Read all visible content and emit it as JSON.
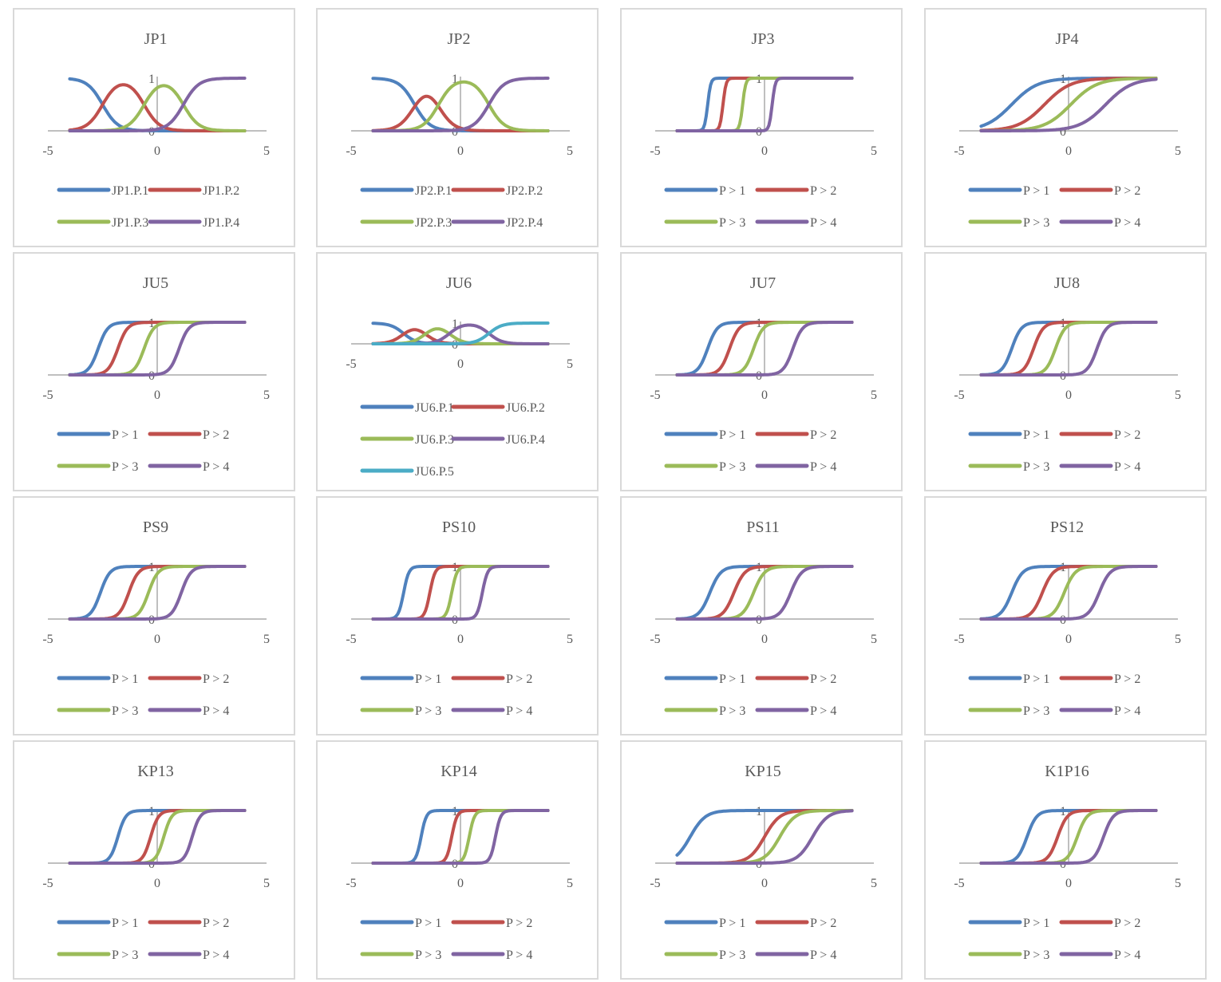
{
  "colors": {
    "c1": "#4f81bd",
    "c2": "#c0504d",
    "c3": "#9bbb59",
    "c4": "#8064a2",
    "c5": "#4bacc6",
    "axis": "#bfbfbf",
    "text": "#595959",
    "border": "#d9d9d9"
  },
  "chart_data": [
    {
      "title": "JP1",
      "type": "line",
      "x_range": [
        -4,
        4
      ],
      "xlim": [
        -5,
        5
      ],
      "ylim": [
        0,
        1
      ],
      "xticks": [
        "-5",
        "0",
        "5"
      ],
      "yticks": [
        "0",
        "1"
      ],
      "legend_position": "bottom",
      "series": [
        {
          "name": "JP1.P.1",
          "kind": "prob1",
          "params": [
            -2.5,
            0.35
          ]
        },
        {
          "name": "JP1.P.2",
          "kind": "mid",
          "params": [
            -2.5,
            0.35,
            -0.6,
            0.35
          ]
        },
        {
          "name": "JP1.P.3",
          "kind": "mid",
          "params": [
            -0.6,
            0.35,
            1.2,
            0.35
          ]
        },
        {
          "name": "JP1.P.4",
          "kind": "last",
          "params": [
            1.2,
            0.35
          ]
        }
      ]
    },
    {
      "title": "JP2",
      "type": "line",
      "x_range": [
        -4,
        4
      ],
      "xlim": [
        -5,
        5
      ],
      "ylim": [
        0,
        1
      ],
      "xticks": [
        "-5",
        "0",
        "5"
      ],
      "yticks": [
        "0",
        "1"
      ],
      "legend_position": "bottom",
      "series": [
        {
          "name": "JP2.P.1",
          "kind": "prob1",
          "params": [
            -2.1,
            0.35
          ]
        },
        {
          "name": "JP2.P.2",
          "kind": "mid",
          "params": [
            -2.1,
            0.35,
            -1.0,
            0.35
          ]
        },
        {
          "name": "JP2.P.3",
          "kind": "mid",
          "params": [
            -1.0,
            0.35,
            1.3,
            0.35
          ]
        },
        {
          "name": "JP2.P.4",
          "kind": "last",
          "params": [
            1.3,
            0.35
          ]
        }
      ]
    },
    {
      "title": "JP3",
      "type": "line",
      "x_range": [
        -4,
        4
      ],
      "xlim": [
        -5,
        5
      ],
      "ylim": [
        0,
        1
      ],
      "xticks": [
        "-5",
        "0",
        "5"
      ],
      "yticks": [
        "0",
        "1"
      ],
      "legend_position": "bottom",
      "series": [
        {
          "name": "P > 1",
          "kind": "cum",
          "params": [
            -2.6,
            0.07
          ]
        },
        {
          "name": "P > 2",
          "kind": "cum",
          "params": [
            -1.9,
            0.07
          ]
        },
        {
          "name": "P > 3",
          "kind": "cum",
          "params": [
            -1.0,
            0.07
          ]
        },
        {
          "name": "P > 4",
          "kind": "cum",
          "params": [
            0.35,
            0.07
          ]
        }
      ]
    },
    {
      "title": "JP4",
      "type": "line",
      "x_range": [
        -4,
        4
      ],
      "xlim": [
        -5,
        5
      ],
      "ylim": [
        0,
        1
      ],
      "xticks": [
        "-5",
        "0",
        "5"
      ],
      "yticks": [
        "0",
        "1"
      ],
      "legend_position": "bottom",
      "series": [
        {
          "name": "P > 1",
          "kind": "cum",
          "params": [
            -2.6,
            0.6
          ]
        },
        {
          "name": "P > 2",
          "kind": "cum",
          "params": [
            -1.1,
            0.6
          ]
        },
        {
          "name": "P > 3",
          "kind": "cum",
          "params": [
            0.1,
            0.6
          ]
        },
        {
          "name": "P > 4",
          "kind": "cum",
          "params": [
            1.7,
            0.6
          ]
        }
      ]
    },
    {
      "title": "JU5",
      "type": "line",
      "x_range": [
        -4,
        4
      ],
      "xlim": [
        -5,
        5
      ],
      "ylim": [
        0,
        1
      ],
      "xticks": [
        "-5",
        "0",
        "5"
      ],
      "yticks": [
        "0",
        "1"
      ],
      "legend_position": "bottom",
      "series": [
        {
          "name": "P > 1",
          "kind": "cum",
          "params": [
            -2.7,
            0.22
          ]
        },
        {
          "name": "P > 2",
          "kind": "cum",
          "params": [
            -1.8,
            0.22
          ]
        },
        {
          "name": "P > 3",
          "kind": "cum",
          "params": [
            -0.6,
            0.22
          ]
        },
        {
          "name": "P > 4",
          "kind": "cum",
          "params": [
            1.0,
            0.22
          ]
        }
      ]
    },
    {
      "title": "JU6",
      "type": "line",
      "x_range": [
        -4,
        4
      ],
      "xlim": [
        -5,
        5
      ],
      "ylim": [
        0,
        1
      ],
      "xticks": [
        "-5",
        "0",
        "5"
      ],
      "yticks": [
        "0",
        "1"
      ],
      "legend_position": "bottom",
      "series": [
        {
          "name": "JU6.P.1",
          "kind": "prob1",
          "params": [
            -2.6,
            0.3
          ]
        },
        {
          "name": "JU6.P.2",
          "kind": "mid",
          "params": [
            -2.6,
            0.3,
            -1.6,
            0.3
          ]
        },
        {
          "name": "JU6.P.3",
          "kind": "mid",
          "params": [
            -1.6,
            0.3,
            -0.5,
            0.3
          ]
        },
        {
          "name": "JU6.P.4",
          "kind": "mid",
          "params": [
            -0.5,
            0.3,
            1.3,
            0.3
          ]
        },
        {
          "name": "JU6.P.5",
          "kind": "last",
          "params": [
            1.3,
            0.3
          ]
        }
      ]
    },
    {
      "title": "JU7",
      "type": "line",
      "x_range": [
        -4,
        4
      ],
      "xlim": [
        -5,
        5
      ],
      "ylim": [
        0,
        1
      ],
      "xticks": [
        "-5",
        "0",
        "5"
      ],
      "yticks": [
        "0",
        "1"
      ],
      "legend_position": "bottom",
      "series": [
        {
          "name": "P > 1",
          "kind": "cum",
          "params": [
            -2.6,
            0.22
          ]
        },
        {
          "name": "P > 2",
          "kind": "cum",
          "params": [
            -1.6,
            0.22
          ]
        },
        {
          "name": "P > 3",
          "kind": "cum",
          "params": [
            -0.5,
            0.22
          ]
        },
        {
          "name": "P > 4",
          "kind": "cum",
          "params": [
            1.3,
            0.22
          ]
        }
      ]
    },
    {
      "title": "JU8",
      "type": "line",
      "x_range": [
        -4,
        4
      ],
      "xlim": [
        -5,
        5
      ],
      "ylim": [
        0,
        1
      ],
      "xticks": [
        "-5",
        "0",
        "5"
      ],
      "yticks": [
        "0",
        "1"
      ],
      "legend_position": "bottom",
      "series": [
        {
          "name": "P > 1",
          "kind": "cum",
          "params": [
            -2.6,
            0.22
          ]
        },
        {
          "name": "P > 2",
          "kind": "cum",
          "params": [
            -1.6,
            0.22
          ]
        },
        {
          "name": "P > 3",
          "kind": "cum",
          "params": [
            -0.6,
            0.22
          ]
        },
        {
          "name": "P > 4",
          "kind": "cum",
          "params": [
            1.3,
            0.22
          ]
        }
      ]
    },
    {
      "title": "PS9",
      "type": "line",
      "x_range": [
        -4,
        4
      ],
      "xlim": [
        -5,
        5
      ],
      "ylim": [
        0,
        1
      ],
      "xticks": [
        "-5",
        "0",
        "5"
      ],
      "yticks": [
        "0",
        "1"
      ],
      "legend_position": "bottom",
      "series": [
        {
          "name": "P > 1",
          "kind": "cum",
          "params": [
            -2.6,
            0.22
          ]
        },
        {
          "name": "P > 2",
          "kind": "cum",
          "params": [
            -1.3,
            0.22
          ]
        },
        {
          "name": "P > 3",
          "kind": "cum",
          "params": [
            -0.4,
            0.22
          ]
        },
        {
          "name": "P > 4",
          "kind": "cum",
          "params": [
            1.1,
            0.22
          ]
        }
      ]
    },
    {
      "title": "PS10",
      "type": "line",
      "x_range": [
        -4,
        4
      ],
      "xlim": [
        -5,
        5
      ],
      "ylim": [
        0,
        1
      ],
      "xticks": [
        "-5",
        "0",
        "5"
      ],
      "yticks": [
        "0",
        "1"
      ],
      "legend_position": "bottom",
      "series": [
        {
          "name": "P > 1",
          "kind": "cum",
          "params": [
            -2.6,
            0.12
          ]
        },
        {
          "name": "P > 2",
          "kind": "cum",
          "params": [
            -1.4,
            0.12
          ]
        },
        {
          "name": "P > 3",
          "kind": "cum",
          "params": [
            -0.4,
            0.12
          ]
        },
        {
          "name": "P > 4",
          "kind": "cum",
          "params": [
            1.0,
            0.12
          ]
        }
      ]
    },
    {
      "title": "PS11",
      "type": "line",
      "x_range": [
        -4,
        4
      ],
      "xlim": [
        -5,
        5
      ],
      "ylim": [
        0,
        1
      ],
      "xticks": [
        "-5",
        "0",
        "5"
      ],
      "yticks": [
        "0",
        "1"
      ],
      "legend_position": "bottom",
      "series": [
        {
          "name": "P > 1",
          "kind": "cum",
          "params": [
            -2.5,
            0.25
          ]
        },
        {
          "name": "P > 2",
          "kind": "cum",
          "params": [
            -1.4,
            0.25
          ]
        },
        {
          "name": "P > 3",
          "kind": "cum",
          "params": [
            -0.5,
            0.25
          ]
        },
        {
          "name": "P > 4",
          "kind": "cum",
          "params": [
            1.2,
            0.25
          ]
        }
      ]
    },
    {
      "title": "PS12",
      "type": "line",
      "x_range": [
        -4,
        4
      ],
      "xlim": [
        -5,
        5
      ],
      "ylim": [
        0,
        1
      ],
      "xticks": [
        "-5",
        "0",
        "5"
      ],
      "yticks": [
        "0",
        "1"
      ],
      "legend_position": "bottom",
      "series": [
        {
          "name": "P > 1",
          "kind": "cum",
          "params": [
            -2.6,
            0.25
          ]
        },
        {
          "name": "P > 2",
          "kind": "cum",
          "params": [
            -1.2,
            0.25
          ]
        },
        {
          "name": "P > 3",
          "kind": "cum",
          "params": [
            -0.2,
            0.25
          ]
        },
        {
          "name": "P > 4",
          "kind": "cum",
          "params": [
            1.4,
            0.25
          ]
        }
      ]
    },
    {
      "title": "KP13",
      "type": "line",
      "x_range": [
        -4,
        4
      ],
      "xlim": [
        -5,
        5
      ],
      "ylim": [
        0,
        1
      ],
      "xticks": [
        "-5",
        "0",
        "5"
      ],
      "yticks": [
        "0",
        "1"
      ],
      "legend_position": "bottom",
      "series": [
        {
          "name": "P > 1",
          "kind": "cum",
          "params": [
            -1.8,
            0.18
          ]
        },
        {
          "name": "P > 2",
          "kind": "cum",
          "params": [
            -0.3,
            0.18
          ]
        },
        {
          "name": "P > 3",
          "kind": "cum",
          "params": [
            0.3,
            0.18
          ]
        },
        {
          "name": "P > 4",
          "kind": "cum",
          "params": [
            1.6,
            0.18
          ]
        }
      ]
    },
    {
      "title": "KP14",
      "type": "line",
      "x_range": [
        -4,
        4
      ],
      "xlim": [
        -5,
        5
      ],
      "ylim": [
        0,
        1
      ],
      "xticks": [
        "-5",
        "0",
        "5"
      ],
      "yticks": [
        "0",
        "1"
      ],
      "legend_position": "bottom",
      "series": [
        {
          "name": "P > 1",
          "kind": "cum",
          "params": [
            -1.8,
            0.12
          ]
        },
        {
          "name": "P > 2",
          "kind": "cum",
          "params": [
            -0.4,
            0.12
          ]
        },
        {
          "name": "P > 3",
          "kind": "cum",
          "params": [
            0.4,
            0.12
          ]
        },
        {
          "name": "P > 4",
          "kind": "cum",
          "params": [
            1.6,
            0.12
          ]
        }
      ]
    },
    {
      "title": "KP15",
      "type": "line",
      "x_range": [
        -4,
        4
      ],
      "xlim": [
        -5,
        5
      ],
      "ylim": [
        0,
        1
      ],
      "xticks": [
        "-5",
        "0",
        "5"
      ],
      "yticks": [
        "0",
        "1"
      ],
      "legend_position": "bottom",
      "series": [
        {
          "name": "P > 1",
          "kind": "cum",
          "params": [
            -3.4,
            0.35
          ]
        },
        {
          "name": "P > 2",
          "kind": "cum",
          "params": [
            0.0,
            0.35
          ]
        },
        {
          "name": "P > 3",
          "kind": "cum",
          "params": [
            0.7,
            0.35
          ]
        },
        {
          "name": "P > 4",
          "kind": "cum",
          "params": [
            2.2,
            0.35
          ]
        }
      ]
    },
    {
      "title": "K1P16",
      "type": "line",
      "x_range": [
        -4,
        4
      ],
      "xlim": [
        -5,
        5
      ],
      "ylim": [
        0,
        1
      ],
      "xticks": [
        "-5",
        "0",
        "5"
      ],
      "yticks": [
        "0",
        "1"
      ],
      "legend_position": "bottom",
      "series": [
        {
          "name": "P > 1",
          "kind": "cum",
          "params": [
            -1.9,
            0.22
          ]
        },
        {
          "name": "P > 2",
          "kind": "cum",
          "params": [
            -0.5,
            0.22
          ]
        },
        {
          "name": "P > 3",
          "kind": "cum",
          "params": [
            0.4,
            0.22
          ]
        },
        {
          "name": "P > 4",
          "kind": "cum",
          "params": [
            1.6,
            0.22
          ]
        }
      ]
    }
  ]
}
